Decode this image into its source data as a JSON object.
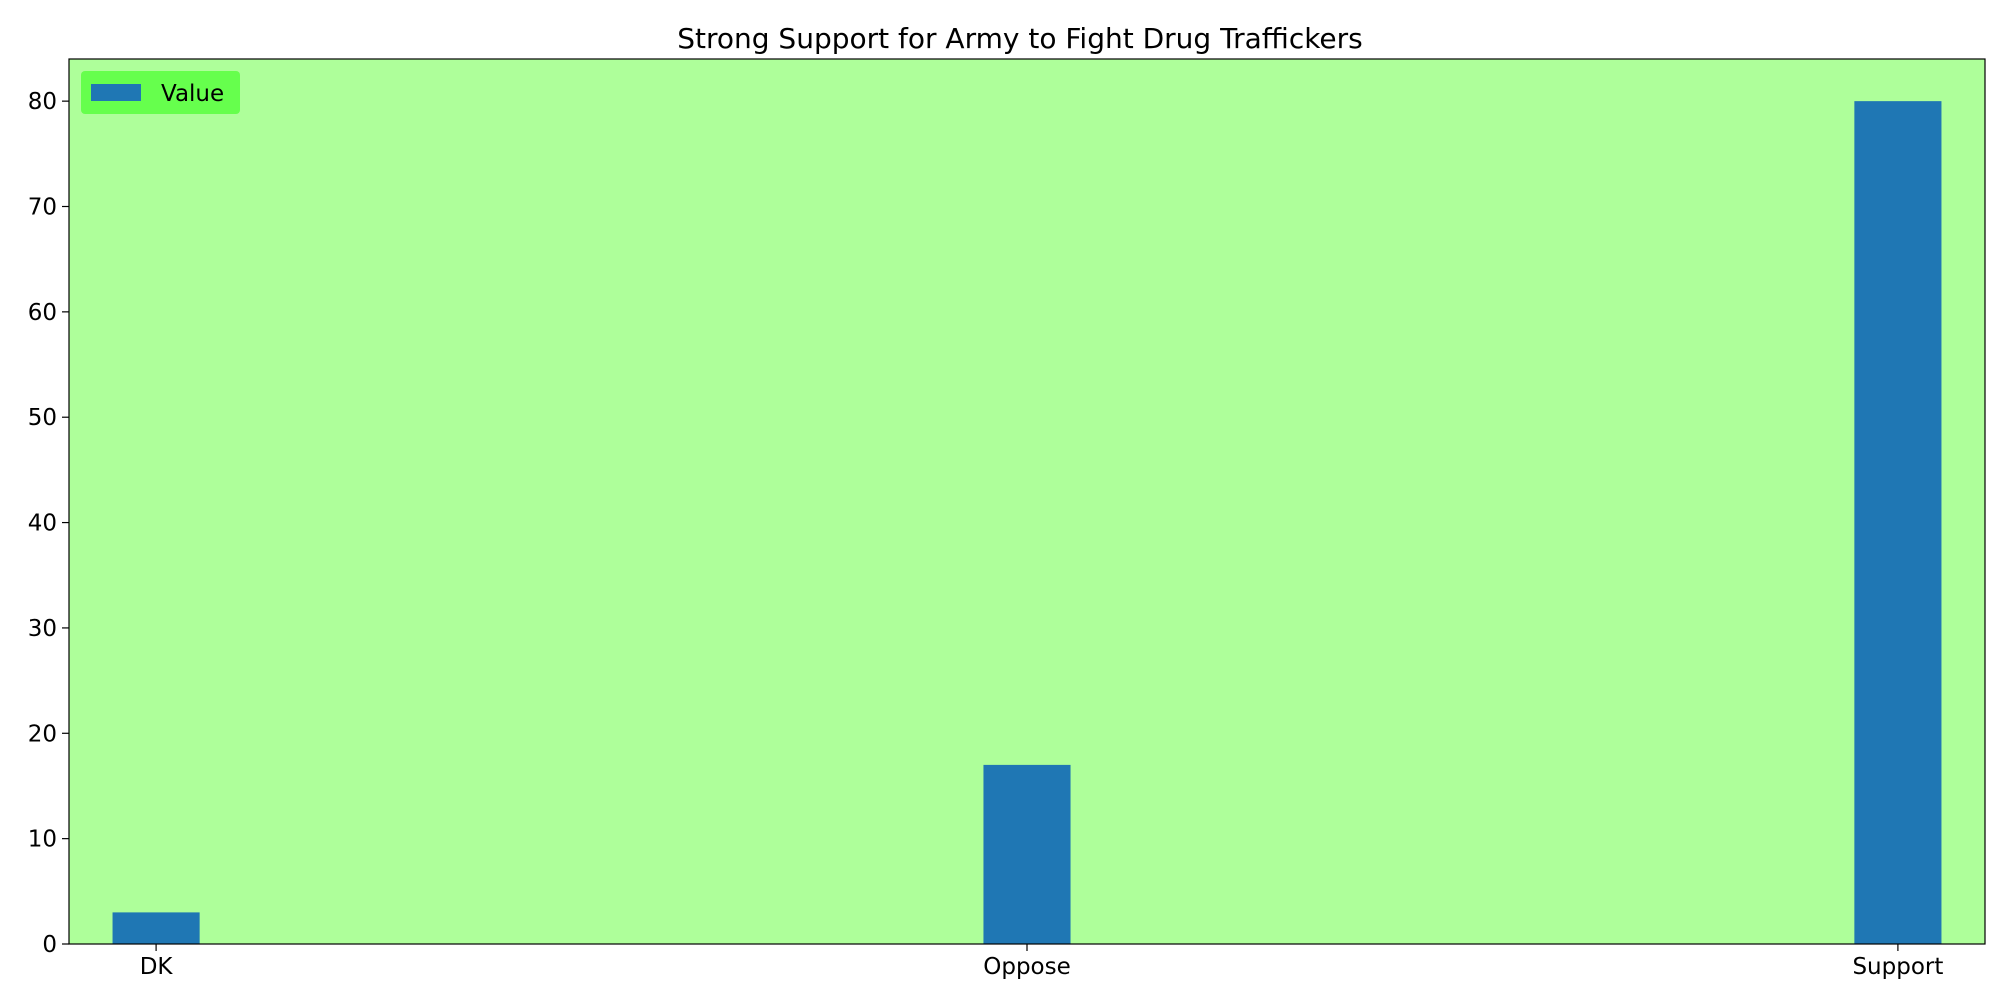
{
  "chart_data": {
    "type": "bar",
    "title": "Strong Support for Army to Fight Drug Traffickers",
    "xlabel": "",
    "ylabel": "",
    "categories": [
      "DK",
      "Oppose",
      "Support"
    ],
    "series": [
      {
        "name": "Value",
        "values": [
          3,
          17,
          80
        ]
      }
    ],
    "ylim": [
      0,
      84
    ],
    "yticks": [
      0,
      10,
      20,
      30,
      40,
      50,
      60,
      70,
      80
    ],
    "grid": false,
    "legend": "top-left",
    "colors": {
      "plot_background": "#aeff9a",
      "bar": "#1f77b4",
      "legend_background": "#66ff4d",
      "axis": "#000000"
    }
  }
}
